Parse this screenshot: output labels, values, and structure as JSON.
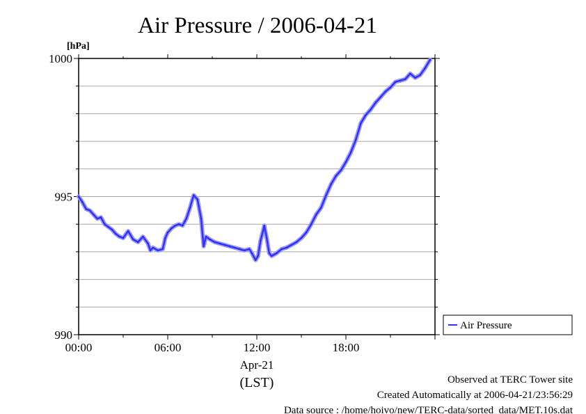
{
  "chart_data": {
    "type": "line",
    "title": "Air Pressure / 2006-04-21",
    "ylabel": "[hPa]",
    "ylim": [
      990,
      1000
    ],
    "y_ticks": [
      "990",
      "995",
      "1000"
    ],
    "x_ticks": [
      "00:00",
      "06:00",
      "12:00",
      "18:00"
    ],
    "x_date_label": "Apr-21",
    "x_zone_label": "(LST)",
    "grid": true,
    "legend_position": "right",
    "series": [
      {
        "name": "Air Pressure",
        "color": "#3333ff",
        "points": [
          [
            "00:00",
            995.0
          ],
          [
            "00:15",
            994.8
          ],
          [
            "00:30",
            994.55
          ],
          [
            "00:45",
            994.5
          ],
          [
            "01:00",
            994.35
          ],
          [
            "01:15",
            994.2
          ],
          [
            "01:30",
            994.25
          ],
          [
            "01:45",
            994.0
          ],
          [
            "02:00",
            993.9
          ],
          [
            "02:15",
            993.8
          ],
          [
            "02:30",
            993.65
          ],
          [
            "02:45",
            993.55
          ],
          [
            "03:00",
            993.5
          ],
          [
            "03:20",
            993.75
          ],
          [
            "03:40",
            993.45
          ],
          [
            "04:00",
            993.35
          ],
          [
            "04:20",
            993.55
          ],
          [
            "04:40",
            993.3
          ],
          [
            "04:50",
            993.05
          ],
          [
            "05:00",
            993.15
          ],
          [
            "05:20",
            993.05
          ],
          [
            "05:40",
            993.1
          ],
          [
            "05:50",
            993.5
          ],
          [
            "06:00",
            993.7
          ],
          [
            "06:15",
            993.85
          ],
          [
            "06:30",
            993.95
          ],
          [
            "06:45",
            994.0
          ],
          [
            "07:00",
            993.95
          ],
          [
            "07:15",
            994.2
          ],
          [
            "07:30",
            994.6
          ],
          [
            "07:45",
            995.05
          ],
          [
            "08:00",
            994.9
          ],
          [
            "08:15",
            994.2
          ],
          [
            "08:25",
            993.2
          ],
          [
            "08:35",
            993.55
          ],
          [
            "08:50",
            993.45
          ],
          [
            "09:10",
            993.35
          ],
          [
            "09:30",
            993.3
          ],
          [
            "09:50",
            993.25
          ],
          [
            "10:10",
            993.2
          ],
          [
            "10:30",
            993.15
          ],
          [
            "10:50",
            993.1
          ],
          [
            "11:10",
            993.05
          ],
          [
            "11:30",
            993.1
          ],
          [
            "11:40",
            992.95
          ],
          [
            "11:55",
            992.7
          ],
          [
            "12:05",
            992.85
          ],
          [
            "12:15",
            993.4
          ],
          [
            "12:25",
            993.75
          ],
          [
            "12:30",
            993.95
          ],
          [
            "12:40",
            993.5
          ],
          [
            "12:50",
            992.95
          ],
          [
            "13:00",
            992.85
          ],
          [
            "13:20",
            992.95
          ],
          [
            "13:40",
            993.1
          ],
          [
            "14:00",
            993.15
          ],
          [
            "14:20",
            993.25
          ],
          [
            "14:40",
            993.35
          ],
          [
            "15:00",
            993.5
          ],
          [
            "15:20",
            993.7
          ],
          [
            "15:40",
            994.0
          ],
          [
            "16:00",
            994.35
          ],
          [
            "16:20",
            994.6
          ],
          [
            "16:40",
            995.05
          ],
          [
            "17:00",
            995.45
          ],
          [
            "17:20",
            995.75
          ],
          [
            "17:40",
            995.95
          ],
          [
            "18:00",
            996.25
          ],
          [
            "18:20",
            996.6
          ],
          [
            "18:40",
            997.05
          ],
          [
            "19:00",
            997.65
          ],
          [
            "19:20",
            997.95
          ],
          [
            "19:40",
            998.15
          ],
          [
            "20:00",
            998.4
          ],
          [
            "20:20",
            998.6
          ],
          [
            "20:40",
            998.8
          ],
          [
            "21:00",
            998.95
          ],
          [
            "21:20",
            999.15
          ],
          [
            "21:40",
            999.2
          ],
          [
            "22:00",
            999.25
          ],
          [
            "22:20",
            999.45
          ],
          [
            "22:40",
            999.3
          ],
          [
            "23:00",
            999.4
          ],
          [
            "23:20",
            999.65
          ],
          [
            "23:40",
            999.95
          ]
        ]
      }
    ]
  },
  "footer": {
    "line1": "Observed at TERC Tower site",
    "line2": "Created Automatically at 2006-04-21/23:56:29",
    "line3": "Data source : /home/hoivo/new/TERC-data/sorted_data/MET.10s.dat"
  }
}
